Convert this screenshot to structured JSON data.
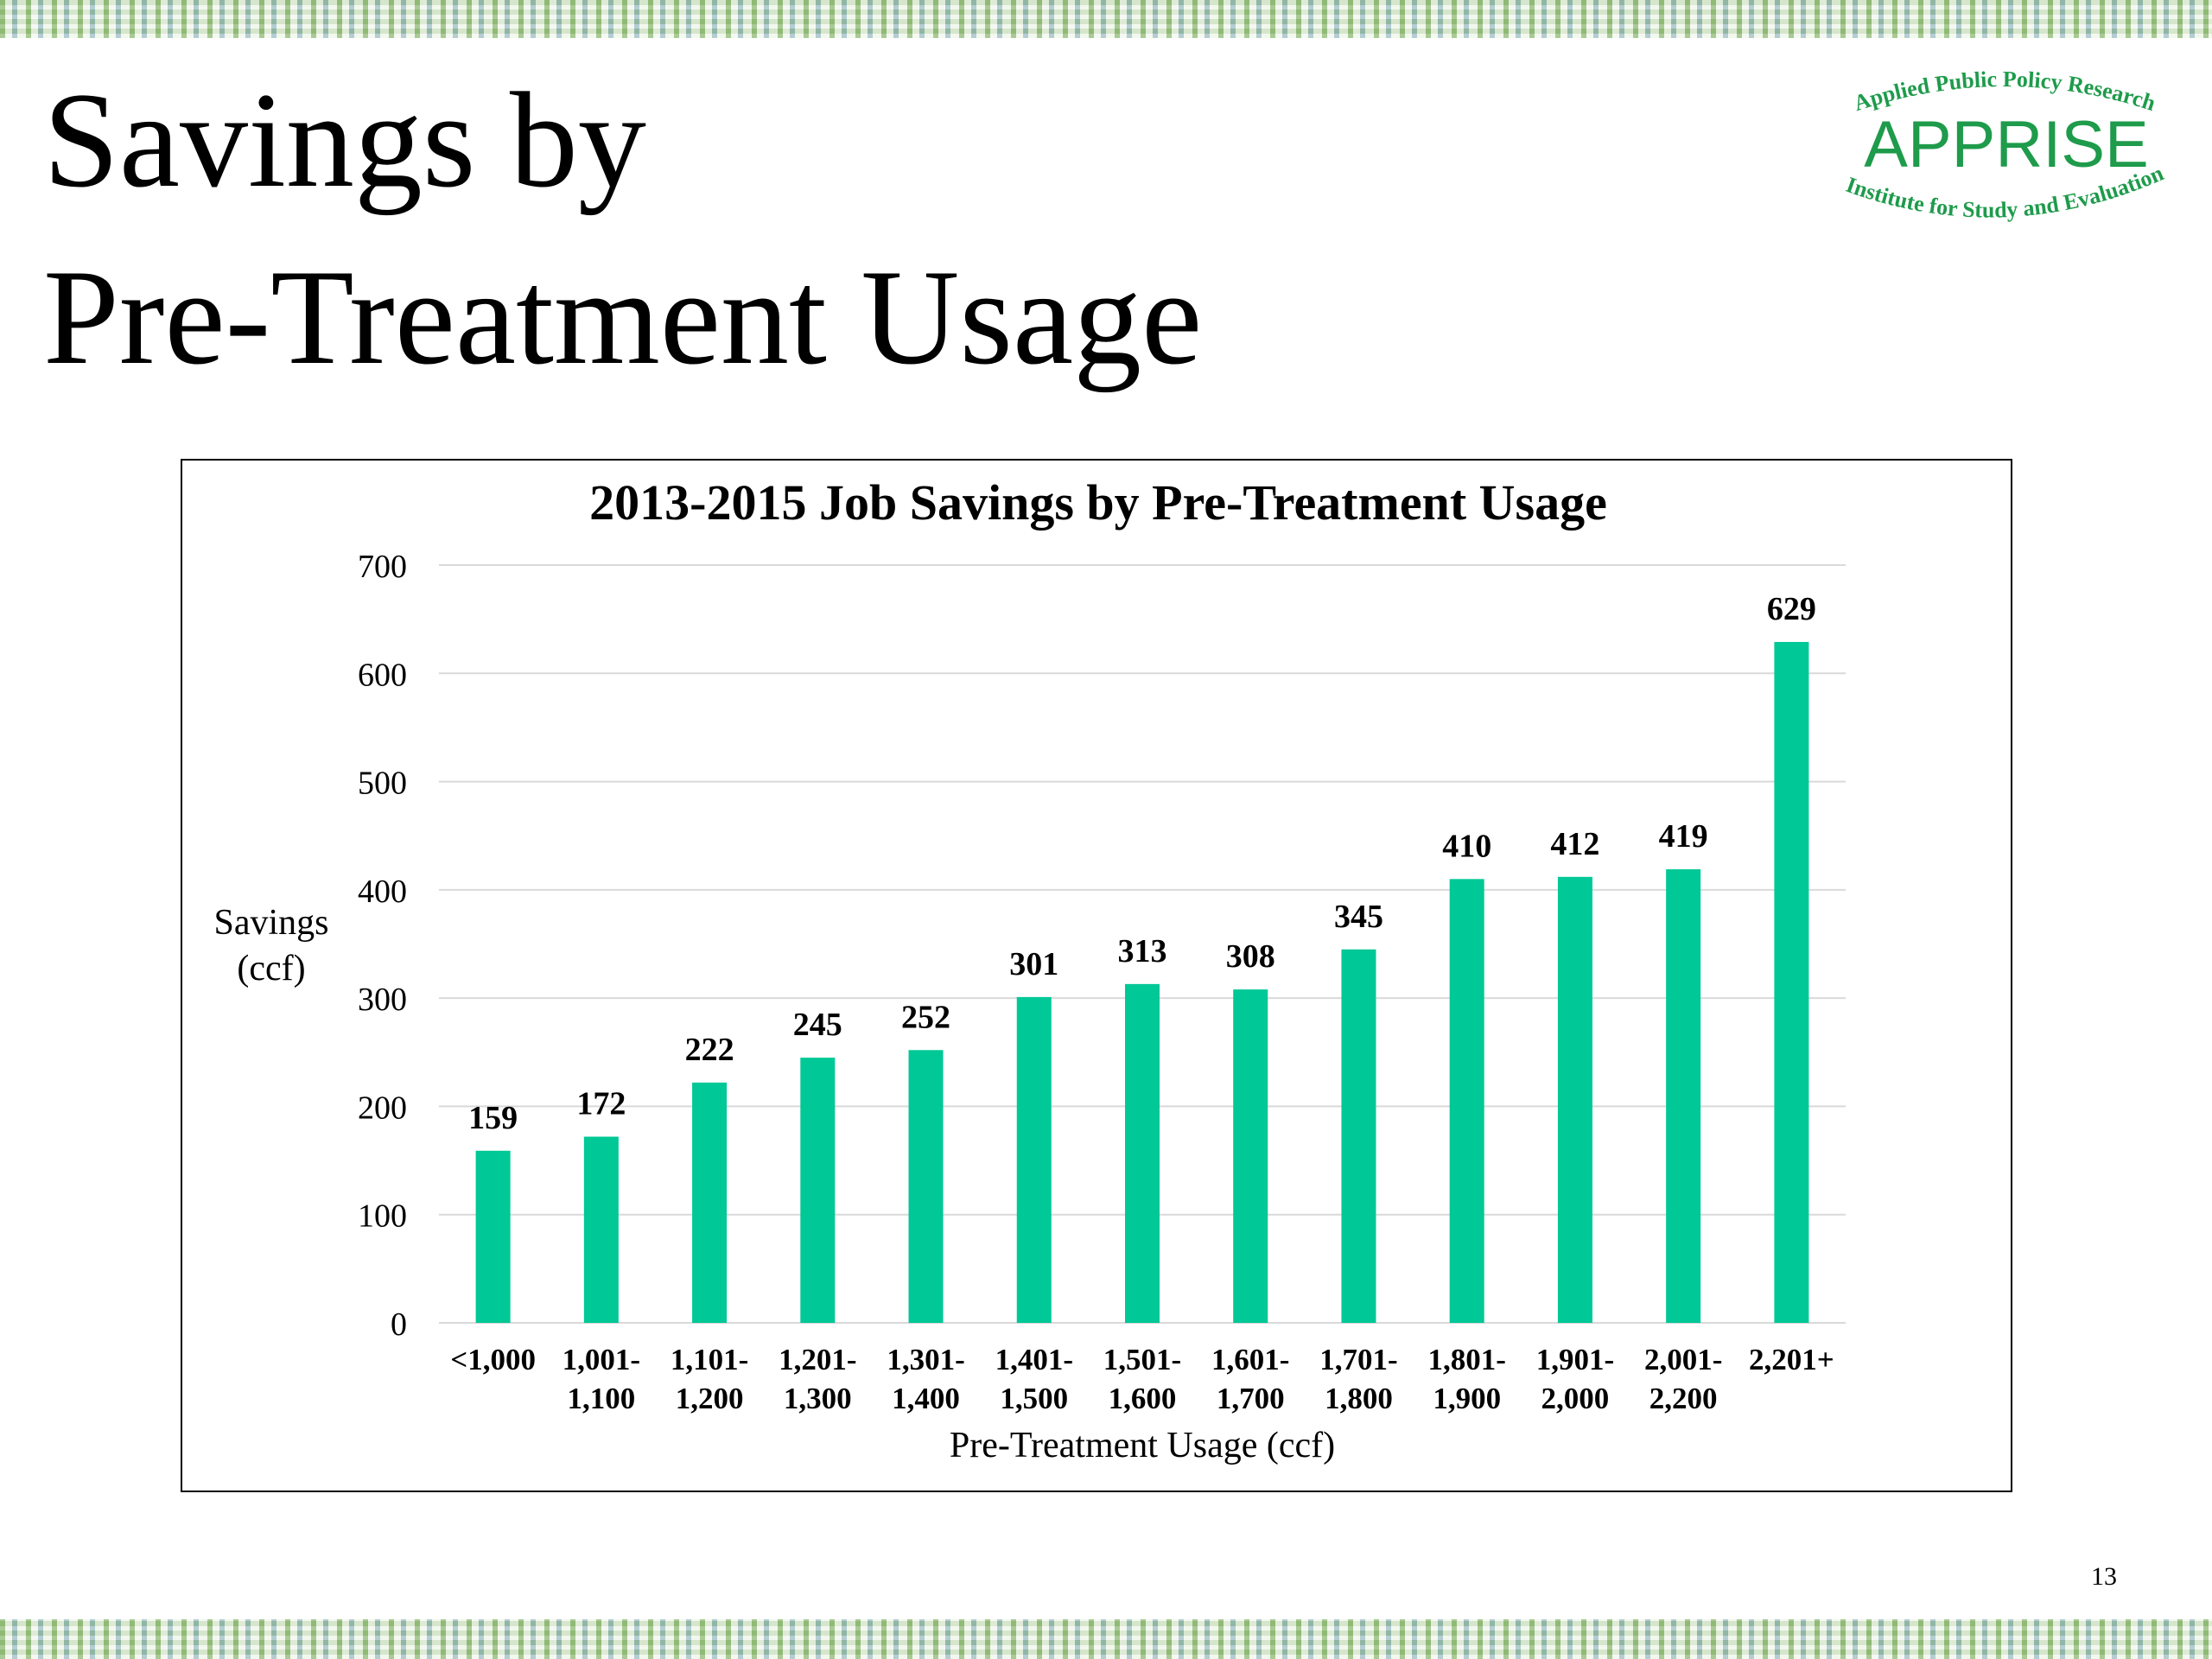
{
  "slide": {
    "title_line1": "Savings by",
    "title_line2": "Pre-Treatment Usage",
    "page_number": "13"
  },
  "logo": {
    "top_text": "Applied Public Policy Research",
    "brand": "APPRISE",
    "bottom_text": "Institute for Study and Evaluation",
    "color": "#1e9b4b"
  },
  "colors": {
    "bar": "#00c896",
    "grid": "#d9d9d9"
  },
  "chart_data": {
    "type": "bar",
    "title": "2013-2015 Job Savings by Pre-Treatment Usage",
    "xlabel": "Pre-Treatment Usage (ccf)",
    "ylabel": [
      "Savings",
      "(ccf)"
    ],
    "ylim": [
      0,
      700
    ],
    "yticks": [
      0,
      100,
      200,
      300,
      400,
      500,
      600,
      700
    ],
    "grid": true,
    "categories": [
      [
        "<1,000"
      ],
      [
        "1,001-",
        "1,100"
      ],
      [
        "1,101-",
        "1,200"
      ],
      [
        "1,201-",
        "1,300"
      ],
      [
        "1,301-",
        "1,400"
      ],
      [
        "1,401-",
        "1,500"
      ],
      [
        "1,501-",
        "1,600"
      ],
      [
        "1,601-",
        "1,700"
      ],
      [
        "1,701-",
        "1,800"
      ],
      [
        "1,801-",
        "1,900"
      ],
      [
        "1,901-",
        "2,000"
      ],
      [
        "2,001-",
        "2,200"
      ],
      [
        "2,201+"
      ]
    ],
    "values": [
      159,
      172,
      222,
      245,
      252,
      301,
      313,
      308,
      345,
      410,
      412,
      419,
      629
    ]
  }
}
